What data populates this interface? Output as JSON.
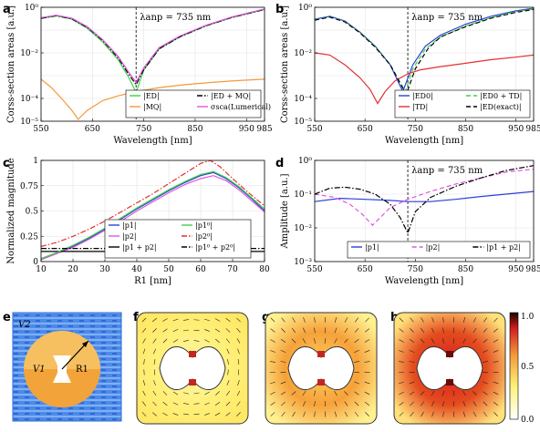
{
  "panel_labels": [
    "a",
    "b",
    "c",
    "d",
    "e",
    "f",
    "g",
    "h"
  ],
  "annotation_a": "λanp = 735 nm",
  "annotation_b": "λanp = 735 nm",
  "annotation_d": "λanp = 735 nm",
  "colorbar_ticks": [
    "1.0",
    "0.5",
    "0.0"
  ],
  "panel_e": {
    "v2": "V2",
    "v1": "V1",
    "r1": "R1"
  },
  "colors": {
    "blue": "#2b3fd6",
    "green": "#3cd24a",
    "black": "#000000",
    "magenta": "#e055e0",
    "orange": "#f39a3a",
    "red": "#e23030",
    "grey": "#888888"
  },
  "chart_data": [
    {
      "panel": "a",
      "type": "line",
      "xlabel": "Wavelength [nm]",
      "ylabel": "Corss-section areas [a.u.]",
      "xlim": [
        550,
        985
      ],
      "ylim": [
        1e-05,
        1
      ],
      "yscale": "log",
      "xticks": [
        "550",
        "650",
        "750",
        "850",
        "950",
        "985"
      ],
      "yticks": [
        "10⁰",
        "10⁻²",
        "10⁻⁴",
        "10⁻⁵"
      ],
      "vline": 735,
      "legend": {
        "position": "bottom-right",
        "entries": [
          "|ED|",
          "|ED + MQ|",
          "|MQ|",
          "σsca(Lumerical)"
        ]
      },
      "series": [
        {
          "name": "|ED|",
          "color": "green",
          "dash": "solid",
          "x": [
            550,
            580,
            610,
            640,
            670,
            700,
            720,
            735,
            750,
            780,
            820,
            870,
            920,
            985
          ],
          "y": [
            0.32,
            0.42,
            0.3,
            0.12,
            0.03,
            0.005,
            0.0009,
            0.00018,
            0.0018,
            0.015,
            0.05,
            0.15,
            0.35,
            0.8
          ]
        },
        {
          "name": "|ED + MQ|",
          "color": "black",
          "dash": "dashdot",
          "x": [
            550,
            580,
            610,
            640,
            670,
            700,
            720,
            735,
            750,
            780,
            820,
            870,
            920,
            985
          ],
          "y": [
            0.33,
            0.43,
            0.31,
            0.13,
            0.035,
            0.006,
            0.0012,
            0.0004,
            0.0018,
            0.015,
            0.05,
            0.15,
            0.35,
            0.8
          ]
        },
        {
          "name": "|MQ|",
          "color": "orange",
          "dash": "solid",
          "x": [
            550,
            570,
            590,
            610,
            622,
            640,
            670,
            700,
            735,
            780,
            830,
            880,
            930,
            985
          ],
          "y": [
            0.0007,
            0.0003,
            0.0001,
            3e-05,
            1.2e-05,
            3e-05,
            8e-05,
            0.00013,
            0.0002,
            0.0003,
            0.0004,
            0.0005,
            0.0006,
            0.0007
          ]
        },
        {
          "name": "σsca(Lumerical)",
          "color": "magenta",
          "dash": "solid",
          "x": [
            550,
            580,
            610,
            640,
            670,
            700,
            720,
            735,
            750,
            780,
            820,
            870,
            920,
            985
          ],
          "y": [
            0.35,
            0.45,
            0.33,
            0.14,
            0.038,
            0.007,
            0.0015,
            0.0005,
            0.0022,
            0.017,
            0.055,
            0.16,
            0.37,
            0.85
          ]
        }
      ]
    },
    {
      "panel": "b",
      "type": "line",
      "xlabel": "Wavelength [nm]",
      "ylabel": "Corss-section areas [a.u.]",
      "xlim": [
        550,
        985
      ],
      "ylim": [
        1e-05,
        1
      ],
      "yscale": "log",
      "xticks": [
        "550",
        "650",
        "750",
        "850",
        "950",
        "985"
      ],
      "yticks": [
        "10⁰",
        "10⁻²",
        "10⁻⁴",
        "10⁻⁵"
      ],
      "vline": 735,
      "legend": {
        "position": "bottom-right",
        "entries": [
          "|ED0|",
          "|ED0 + TD|",
          "|TD|",
          "|ED(exact)|"
        ]
      },
      "series": [
        {
          "name": "|ED0|",
          "color": "blue",
          "dash": "solid",
          "x": [
            550,
            580,
            610,
            640,
            670,
            700,
            725,
            745,
            770,
            800,
            850,
            900,
            950,
            985
          ],
          "y": [
            0.3,
            0.4,
            0.25,
            0.08,
            0.02,
            0.003,
            0.0002,
            0.003,
            0.02,
            0.06,
            0.18,
            0.4,
            0.7,
            0.9
          ]
        },
        {
          "name": "|ED0 + TD|",
          "color": "green",
          "dash": "dashed",
          "x": [
            550,
            580,
            610,
            640,
            670,
            700,
            730,
            745,
            770,
            800,
            850,
            900,
            950,
            985
          ],
          "y": [
            0.28,
            0.38,
            0.24,
            0.08,
            0.02,
            0.003,
            0.0002,
            0.002,
            0.015,
            0.05,
            0.15,
            0.35,
            0.65,
            0.85
          ]
        },
        {
          "name": "|TD|",
          "color": "red",
          "dash": "solid",
          "x": [
            550,
            580,
            610,
            640,
            660,
            675,
            690,
            710,
            735,
            760,
            800,
            850,
            900,
            950,
            985
          ],
          "y": [
            0.01,
            0.008,
            0.003,
            0.0008,
            0.00025,
            6e-05,
            0.0002,
            0.0006,
            0.0012,
            0.0018,
            0.0025,
            0.0035,
            0.005,
            0.0065,
            0.008
          ]
        },
        {
          "name": "|ED(exact)|",
          "color": "black",
          "dash": "dashed",
          "x": [
            550,
            580,
            610,
            640,
            670,
            700,
            732,
            750,
            775,
            800,
            850,
            900,
            950,
            985
          ],
          "y": [
            0.27,
            0.37,
            0.23,
            0.075,
            0.018,
            0.003,
            0.00015,
            0.002,
            0.015,
            0.05,
            0.14,
            0.33,
            0.6,
            0.8
          ]
        }
      ]
    },
    {
      "panel": "c",
      "type": "line",
      "xlabel": "R1 [nm]",
      "ylabel": "Normalized magnitude",
      "xlim": [
        10,
        80
      ],
      "ylim": [
        0,
        1
      ],
      "yscale": "linear",
      "xticks": [
        "10",
        "20",
        "30",
        "40",
        "50",
        "60",
        "70",
        "80"
      ],
      "yticks": [
        "0",
        "0.25",
        "0.5",
        "0.75",
        "1"
      ],
      "legend": {
        "position": "bottom-center",
        "entries": [
          "|p1|",
          "|p2|",
          "|p1 + p2|",
          "|p1⁰|",
          "|p2⁰|",
          "|p1⁰ + p2⁰|"
        ]
      },
      "series": [
        {
          "name": "|p1|",
          "color": "blue",
          "dash": "solid",
          "x": [
            10,
            15,
            20,
            25,
            30,
            35,
            40,
            45,
            50,
            55,
            60,
            64,
            68,
            72,
            76,
            80
          ],
          "y": [
            0.02,
            0.08,
            0.15,
            0.23,
            0.32,
            0.42,
            0.52,
            0.61,
            0.7,
            0.78,
            0.85,
            0.88,
            0.82,
            0.73,
            0.62,
            0.5
          ]
        },
        {
          "name": "|p2|",
          "color": "magenta",
          "dash": "solid",
          "x": [
            10,
            15,
            20,
            25,
            30,
            35,
            40,
            45,
            50,
            55,
            60,
            64,
            68,
            72,
            76,
            80
          ],
          "y": [
            0.02,
            0.08,
            0.14,
            0.22,
            0.31,
            0.4,
            0.5,
            0.59,
            0.68,
            0.76,
            0.82,
            0.85,
            0.8,
            0.71,
            0.6,
            0.49
          ]
        },
        {
          "name": "|p1 + p2|",
          "color": "black",
          "dash": "solid",
          "x": [
            10,
            80
          ],
          "y": [
            0.1,
            0.1
          ]
        },
        {
          "name": "|p1⁰|",
          "color": "green",
          "dash": "solid",
          "x": [
            10,
            15,
            20,
            25,
            30,
            35,
            40,
            45,
            50,
            55,
            60,
            64,
            68,
            72,
            76,
            80
          ],
          "y": [
            0.03,
            0.09,
            0.16,
            0.24,
            0.33,
            0.43,
            0.53,
            0.62,
            0.71,
            0.79,
            0.86,
            0.89,
            0.83,
            0.74,
            0.63,
            0.52
          ]
        },
        {
          "name": "|p2⁰|",
          "color": "red",
          "dash": "dashdot",
          "x": [
            10,
            15,
            20,
            25,
            30,
            35,
            40,
            45,
            50,
            55,
            60,
            63,
            66,
            70,
            75,
            80
          ],
          "y": [
            0.15,
            0.19,
            0.25,
            0.32,
            0.4,
            0.49,
            0.58,
            0.67,
            0.77,
            0.87,
            0.97,
            1.0,
            0.94,
            0.82,
            0.68,
            0.55
          ]
        },
        {
          "name": "|p1⁰ + p2⁰|",
          "color": "black",
          "dash": "dashdot",
          "x": [
            10,
            80
          ],
          "y": [
            0.13,
            0.13
          ]
        }
      ]
    },
    {
      "panel": "d",
      "type": "line",
      "xlabel": "Wavelength [nm]",
      "ylabel": "Amplitude [a.u.]",
      "xlim": [
        550,
        985
      ],
      "ylim": [
        0.001,
        1
      ],
      "yscale": "log",
      "xticks": [
        "550",
        "650",
        "750",
        "850",
        "950",
        "985"
      ],
      "yticks": [
        "10⁰",
        "10⁻¹",
        "10⁻²",
        "10⁻³"
      ],
      "vline": 735,
      "legend": {
        "position": "bottom-right",
        "entries": [
          "|p1|",
          "|p2|",
          "|p1 + p2|"
        ]
      },
      "series": [
        {
          "name": "|p1|",
          "color": "blue",
          "dash": "solid",
          "x": [
            550,
            600,
            650,
            700,
            735,
            780,
            830,
            880,
            930,
            985
          ],
          "y": [
            0.06,
            0.075,
            0.07,
            0.065,
            0.06,
            0.06,
            0.07,
            0.085,
            0.1,
            0.12
          ]
        },
        {
          "name": "|p2|",
          "color": "magenta",
          "dash": "dashed",
          "x": [
            550,
            590,
            620,
            645,
            665,
            680,
            700,
            735,
            780,
            830,
            880,
            930,
            985
          ],
          "y": [
            0.1,
            0.08,
            0.05,
            0.025,
            0.012,
            0.02,
            0.04,
            0.07,
            0.12,
            0.2,
            0.3,
            0.45,
            0.55
          ]
        },
        {
          "name": "|p1 + p2|",
          "color": "black",
          "dash": "dashdot",
          "x": [
            550,
            580,
            610,
            640,
            670,
            700,
            720,
            735,
            750,
            780,
            830,
            880,
            930,
            985
          ],
          "y": [
            0.1,
            0.15,
            0.16,
            0.14,
            0.1,
            0.05,
            0.02,
            0.007,
            0.03,
            0.08,
            0.17,
            0.3,
            0.5,
            0.7
          ]
        }
      ]
    }
  ]
}
